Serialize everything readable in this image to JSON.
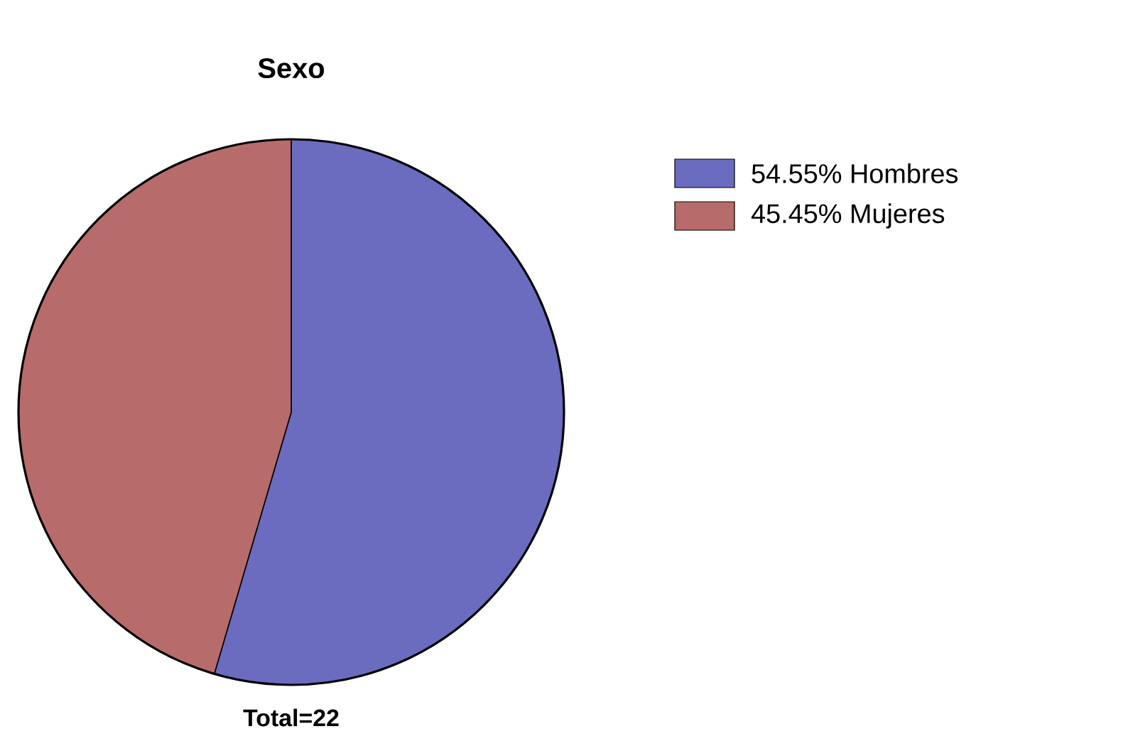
{
  "chart_data": {
    "type": "pie",
    "title": "Sexo",
    "categories": [
      "54.55% Hombres",
      "45.45% Mujeres"
    ],
    "values": [
      54.55,
      45.45
    ],
    "colors": [
      "#6b6bbf",
      "#b86b6b"
    ],
    "legend": "top right",
    "annotations": [
      "Total=22"
    ]
  }
}
